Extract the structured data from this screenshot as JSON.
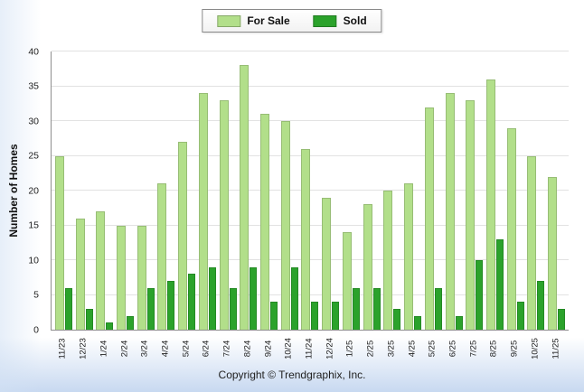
{
  "footer": {
    "copyright": "Copyright © Trendgraphix, Inc."
  },
  "chart_data": {
    "type": "bar",
    "title": "",
    "xlabel": "",
    "ylabel": "Number of Homes",
    "ylim": [
      0,
      40
    ],
    "yticks": [
      0,
      5,
      10,
      15,
      20,
      25,
      30,
      35,
      40
    ],
    "grid": true,
    "legend_position": "top-center",
    "categories": [
      "11/23",
      "12/23",
      "1/24",
      "2/24",
      "3/24",
      "4/24",
      "5/24",
      "6/24",
      "7/24",
      "8/24",
      "9/24",
      "10/24",
      "11/24",
      "12/24",
      "1/25",
      "2/25",
      "3/25",
      "4/25",
      "5/25",
      "6/25",
      "7/25",
      "8/25",
      "9/25",
      "10/25",
      "11/25"
    ],
    "series": [
      {
        "name": "For Sale",
        "color": "#B2DF8A",
        "values": [
          25,
          16,
          17,
          15,
          15,
          21,
          27,
          34,
          33,
          38,
          31,
          30,
          26,
          19,
          14,
          18,
          20,
          21,
          32,
          34,
          33,
          36,
          29,
          25,
          22
        ]
      },
      {
        "name": "Sold",
        "color": "#2BA22B",
        "values": [
          6,
          3,
          1,
          2,
          6,
          7,
          8,
          9,
          6,
          9,
          4,
          9,
          4,
          4,
          6,
          6,
          3,
          2,
          6,
          2,
          10,
          13,
          4,
          7,
          3
        ]
      }
    ]
  }
}
